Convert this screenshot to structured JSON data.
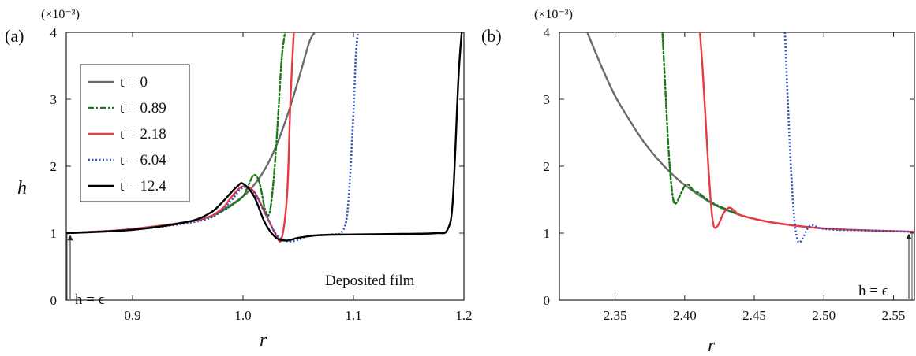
{
  "chart_data": [
    {
      "panel_label": "(a)",
      "type": "line",
      "xlabel": "r",
      "ylabel": "h",
      "y_multiplier": "(×10⁻³)",
      "xlim": [
        0.84,
        1.2
      ],
      "ylim": [
        0,
        4
      ],
      "xticks": [
        {
          "v": 0.9,
          "label": "0.9"
        },
        {
          "v": 1.0,
          "label": "1.0"
        },
        {
          "v": 1.1,
          "label": "1.1"
        },
        {
          "v": 1.2,
          "label": "1.2"
        }
      ],
      "yticks": [
        {
          "v": 0,
          "label": "0"
        },
        {
          "v": 1,
          "label": "1"
        },
        {
          "v": 2,
          "label": "2"
        },
        {
          "v": 3,
          "label": "3"
        },
        {
          "v": 4,
          "label": "4"
        }
      ],
      "legend_position": "top-left",
      "annotations": [
        {
          "text": "h = ϵ"
        },
        {
          "text": "Deposited film"
        }
      ],
      "series": [
        {
          "name": "t = 0",
          "color": "#6b6b6b",
          "dash": "solid",
          "x": [
            0.84,
            0.88,
            0.92,
            0.96,
            0.98,
            1.0,
            1.01,
            1.02,
            1.03,
            1.04,
            1.05,
            1.06,
            1.065
          ],
          "y": [
            1.0,
            1.03,
            1.1,
            1.2,
            1.33,
            1.55,
            1.72,
            1.96,
            2.3,
            2.75,
            3.28,
            3.85,
            4.0
          ]
        },
        {
          "name": "t = 0.89",
          "color": "#1a7a1a",
          "dash": "dashdot",
          "x": [
            0.84,
            0.9,
            0.96,
            0.98,
            0.99,
            1.0,
            1.005,
            1.01,
            1.015,
            1.02,
            1.024,
            1.028,
            1.032,
            1.035,
            1.038
          ],
          "y": [
            1.0,
            1.06,
            1.2,
            1.32,
            1.42,
            1.55,
            1.72,
            1.87,
            1.75,
            1.35,
            1.3,
            1.85,
            2.8,
            3.6,
            4.0
          ]
        },
        {
          "name": "t = 2.18",
          "color": "#e83a45",
          "dash": "solid",
          "x": [
            0.84,
            0.9,
            0.96,
            0.98,
            0.99,
            1.0,
            1.01,
            1.02,
            1.03,
            1.035,
            1.04,
            1.043,
            1.046
          ],
          "y": [
            1.0,
            1.06,
            1.2,
            1.35,
            1.55,
            1.7,
            1.62,
            1.3,
            0.97,
            0.92,
            1.6,
            3.0,
            4.0
          ]
        },
        {
          "name": "t = 6.04",
          "color": "#2b4fb8",
          "dash": "dotted",
          "x": [
            0.84,
            0.9,
            0.96,
            0.98,
            0.99,
            1.0,
            1.01,
            1.02,
            1.03,
            1.04,
            1.05,
            1.06,
            1.08,
            1.09,
            1.095,
            1.1,
            1.102,
            1.104
          ],
          "y": [
            1.0,
            1.05,
            1.18,
            1.32,
            1.5,
            1.68,
            1.6,
            1.3,
            0.98,
            0.88,
            0.9,
            0.96,
            0.98,
            1.03,
            1.4,
            2.8,
            3.6,
            4.0
          ]
        },
        {
          "name": "t = 12.4",
          "color": "#000000",
          "dash": "solid",
          "x": [
            0.84,
            0.9,
            0.95,
            0.97,
            0.98,
            0.99,
            0.995,
            1.0,
            1.01,
            1.02,
            1.03,
            1.04,
            1.05,
            1.07,
            1.1,
            1.15,
            1.175,
            1.185,
            1.19,
            1.195,
            1.198
          ],
          "y": [
            1.0,
            1.05,
            1.17,
            1.3,
            1.44,
            1.62,
            1.7,
            1.74,
            1.55,
            1.15,
            0.93,
            0.89,
            0.93,
            0.97,
            0.98,
            0.99,
            1.0,
            1.05,
            1.5,
            3.3,
            4.0
          ]
        }
      ]
    },
    {
      "panel_label": "(b)",
      "type": "line",
      "xlabel": "r",
      "ylabel": "",
      "y_multiplier": "(×10⁻³)",
      "xlim": [
        2.31,
        2.565
      ],
      "ylim": [
        0,
        4
      ],
      "xticks": [
        {
          "v": 2.35,
          "label": "2.35"
        },
        {
          "v": 2.4,
          "label": "2.40"
        },
        {
          "v": 2.45,
          "label": "2.45"
        },
        {
          "v": 2.5,
          "label": "2.50"
        },
        {
          "v": 2.55,
          "label": "2.55"
        }
      ],
      "yticks": [
        {
          "v": 0,
          "label": "0"
        },
        {
          "v": 1,
          "label": "1"
        },
        {
          "v": 2,
          "label": "2"
        },
        {
          "v": 3,
          "label": "3"
        },
        {
          "v": 4,
          "label": "4"
        }
      ],
      "annotations": [
        {
          "text": "h = ϵ"
        }
      ],
      "series": [
        {
          "name": "t = 0",
          "color": "#6b6b6b",
          "dash": "solid",
          "x": [
            2.33,
            2.34,
            2.35,
            2.36,
            2.37,
            2.38,
            2.39,
            2.4,
            2.42,
            2.44,
            2.46,
            2.48,
            2.5
          ],
          "y": [
            4.0,
            3.5,
            3.05,
            2.7,
            2.38,
            2.12,
            1.9,
            1.72,
            1.44,
            1.27,
            1.17,
            1.11,
            1.07
          ]
        },
        {
          "name": "t = 0.89",
          "color": "#1a7a1a",
          "dash": "dashdot",
          "x": [
            2.384,
            2.386,
            2.388,
            2.39,
            2.392,
            2.394,
            2.397,
            2.4,
            2.403,
            2.406,
            2.41,
            2.42,
            2.44
          ],
          "y": [
            4.0,
            3.2,
            2.4,
            1.8,
            1.48,
            1.45,
            1.58,
            1.7,
            1.72,
            1.64,
            1.6,
            1.45,
            1.27
          ]
        },
        {
          "name": "t = 2.18",
          "color": "#e83a45",
          "dash": "solid",
          "x": [
            2.411,
            2.413,
            2.415,
            2.417,
            2.419,
            2.421,
            2.424,
            2.428,
            2.432,
            2.436,
            2.44,
            2.46,
            2.48,
            2.5,
            2.52,
            2.565
          ],
          "y": [
            4.0,
            3.4,
            2.7,
            2.0,
            1.4,
            1.1,
            1.12,
            1.3,
            1.38,
            1.33,
            1.27,
            1.17,
            1.11,
            1.07,
            1.05,
            1.02
          ]
        },
        {
          "name": "t = 6.04",
          "color": "#2b4fb8",
          "dash": "dotted",
          "x": [
            2.472,
            2.474,
            2.476,
            2.478,
            2.48,
            2.482,
            2.485,
            2.488,
            2.491,
            2.494,
            2.498,
            2.51,
            2.53,
            2.565
          ],
          "y": [
            4.0,
            3.0,
            2.1,
            1.4,
            1.0,
            0.86,
            0.93,
            1.06,
            1.12,
            1.1,
            1.07,
            1.05,
            1.04,
            1.02
          ]
        },
        {
          "name": "t = 12.4",
          "color": "#000000",
          "dash": "solid",
          "x": [],
          "y": []
        }
      ]
    }
  ]
}
